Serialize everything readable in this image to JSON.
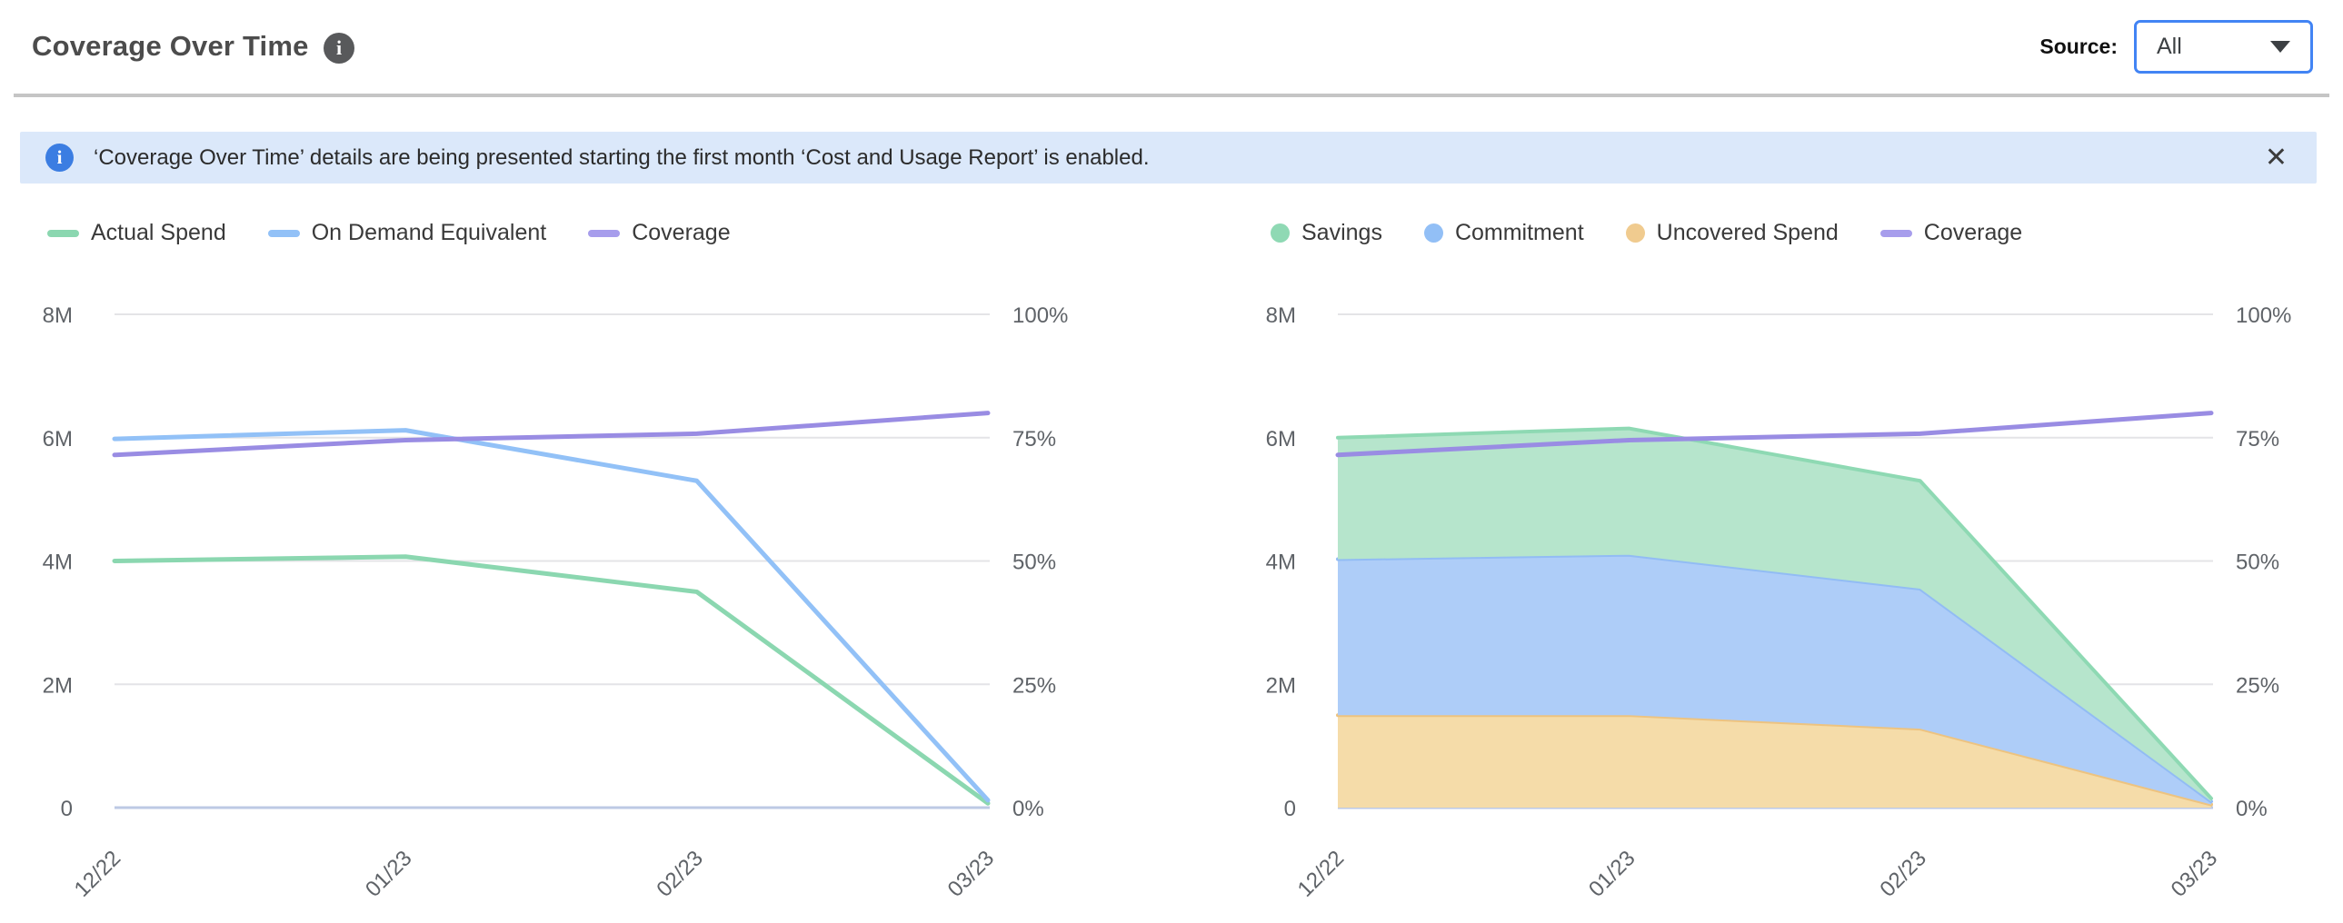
{
  "header": {
    "title": "Coverage Over Time",
    "source_label": "Source:",
    "source_value": "All"
  },
  "banner": {
    "text": "‘Coverage Over Time’ details are being presented starting the first month ‘Cost and Usage Report’ is enabled.",
    "close_label": "✕"
  },
  "icons": {
    "title_info": "i",
    "banner_info": "i"
  },
  "chart_data": [
    {
      "type": "line",
      "title": "",
      "categories": [
        "12/22",
        "01/23",
        "02/23",
        "03/23"
      ],
      "legend": [
        {
          "label": "Actual Spend",
          "swatch": "line",
          "color": "#8BD7B0"
        },
        {
          "label": "On Demand Equivalent",
          "swatch": "line",
          "color": "#92C1F7"
        },
        {
          "label": "Coverage",
          "swatch": "line",
          "color": "#A79DEC"
        }
      ],
      "series": [
        {
          "name": "Actual Spend",
          "kind": "line",
          "axis": "left",
          "color": "#8BD7B0",
          "values": [
            4000000,
            4070000,
            3500000,
            70000
          ]
        },
        {
          "name": "On Demand Equivalent",
          "kind": "line",
          "axis": "left",
          "color": "#92C1F7",
          "values": [
            5980000,
            6120000,
            5300000,
            120000
          ]
        },
        {
          "name": "Coverage",
          "kind": "line",
          "axis": "right",
          "color": "#998CE3",
          "values": [
            71.5,
            74.5,
            75.8,
            80
          ]
        }
      ],
      "left_axis": {
        "ticks": [
          "8M",
          "6M",
          "4M",
          "2M",
          "0"
        ],
        "min": 0,
        "max": 8000000
      },
      "right_axis": {
        "ticks": [
          "100%",
          "75%",
          "50%",
          "25%",
          "0%"
        ],
        "min": 0,
        "max": 100
      },
      "grid": true,
      "legend_position": "top-left"
    },
    {
      "type": "area",
      "title": "",
      "categories": [
        "12/22",
        "01/23",
        "02/23",
        "03/23"
      ],
      "legend": [
        {
          "label": "Savings",
          "swatch": "dot",
          "color": "#8FD9B4"
        },
        {
          "label": "Commitment",
          "swatch": "dot",
          "color": "#92BFF6"
        },
        {
          "label": "Uncovered Spend",
          "swatch": "dot",
          "color": "#F0CB8F"
        },
        {
          "label": "Coverage",
          "swatch": "line",
          "color": "#A79DEC"
        }
      ],
      "series": [
        {
          "name": "Uncovered Spend",
          "kind": "area",
          "axis": "left",
          "color": "#EDC380",
          "fill": "#F5DCA9",
          "stack_top": [
            1500000,
            1500000,
            1280000,
            50000
          ],
          "values": [
            1500000,
            1500000,
            1280000,
            50000
          ]
        },
        {
          "name": "Commitment",
          "kind": "area",
          "axis": "left",
          "color": "#92BCF4",
          "fill": "#AECDF8",
          "stack_top": [
            4030000,
            4100000,
            3550000,
            100000
          ],
          "values": [
            2530000,
            2600000,
            2270000,
            50000
          ]
        },
        {
          "name": "Savings",
          "kind": "area",
          "axis": "left",
          "color": "#8ED9B3",
          "fill": "#B6E5CC",
          "stack_top": [
            6000000,
            6150000,
            5300000,
            150000
          ],
          "values": [
            1970000,
            2050000,
            1750000,
            50000
          ]
        },
        {
          "name": "Coverage",
          "kind": "line",
          "axis": "right",
          "color": "#998CE3",
          "values": [
            71.5,
            74.5,
            75.8,
            80
          ]
        }
      ],
      "left_axis": {
        "ticks": [
          "8M",
          "6M",
          "4M",
          "2M",
          "0"
        ],
        "min": 0,
        "max": 8000000
      },
      "right_axis": {
        "ticks": [
          "100%",
          "75%",
          "50%",
          "25%",
          "0%"
        ],
        "min": 0,
        "max": 100
      },
      "grid": true,
      "legend_position": "top-left"
    }
  ]
}
